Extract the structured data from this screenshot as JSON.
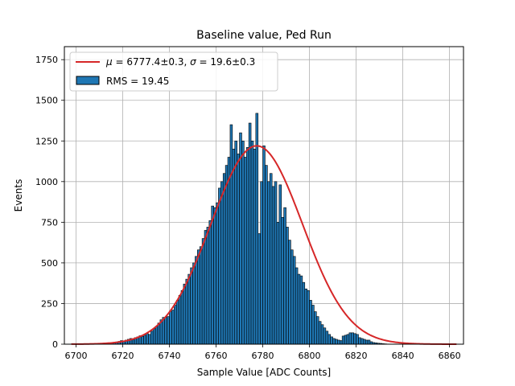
{
  "chart_data": {
    "type": "bar",
    "title": "Baseline value, Ped Run",
    "xlabel": "Sample Value [ADC Counts]",
    "ylabel": "Events",
    "xlim": [
      6695,
      6866
    ],
    "ylim": [
      0,
      1830
    ],
    "xticks": [
      6700,
      6720,
      6740,
      6760,
      6780,
      6800,
      6820,
      6840,
      6860
    ],
    "yticks": [
      0,
      250,
      500,
      750,
      1000,
      1250,
      1500,
      1750
    ],
    "grid": true,
    "legend_position": "top-left",
    "bin_width": 1,
    "histogram": {
      "name": "RMS = 19.45",
      "color": "#1f77b4",
      "edgecolor": "#000000",
      "bins_start": 6698,
      "counts": [
        2,
        0,
        0,
        0,
        0,
        0,
        0,
        1,
        0,
        0,
        0,
        1,
        0,
        2,
        3,
        4,
        6,
        8,
        10,
        14,
        17,
        22,
        20,
        25,
        30,
        35,
        28,
        40,
        45,
        52,
        48,
        55,
        65,
        60,
        80,
        95,
        110,
        130,
        150,
        165,
        165,
        170,
        200,
        210,
        240,
        270,
        300,
        330,
        370,
        400,
        430,
        470,
        500,
        540,
        580,
        600,
        650,
        700,
        720,
        760,
        850,
        840,
        870,
        960,
        1000,
        1050,
        1100,
        1150,
        1350,
        1200,
        1250,
        1170,
        1300,
        1250,
        1150,
        1210,
        1360,
        1250,
        1200,
        1420,
        680,
        1000,
        1220,
        1100,
        1000,
        1050,
        970,
        1000,
        750,
        980,
        780,
        840,
        720,
        640,
        580,
        540,
        470,
        430,
        420,
        380,
        340,
        330,
        270,
        240,
        200,
        170,
        140,
        120,
        100,
        80,
        60,
        45,
        35,
        30,
        25,
        22,
        50,
        55,
        60,
        70,
        70,
        65,
        60,
        40,
        35,
        30,
        25,
        25,
        15,
        10,
        8,
        6,
        5,
        3,
        2,
        1,
        0,
        0,
        0,
        0,
        0,
        0,
        0,
        0,
        0,
        0,
        0,
        0,
        0,
        0,
        0,
        0,
        0,
        0
      ]
    },
    "fit": {
      "name_mu_value": "6777.4±0.3",
      "name_sigma_value": "19.6±0.3",
      "type": "gaussian",
      "mu": 6777.4,
      "sigma": 19.6,
      "amplitude": 1220,
      "x_range": [
        6698,
        6863
      ],
      "color": "#d62728"
    },
    "legend": {
      "fit_label": "μ = 6777.4±0.3, σ = 19.6±0.3",
      "hist_label": "RMS = 19.45"
    }
  }
}
